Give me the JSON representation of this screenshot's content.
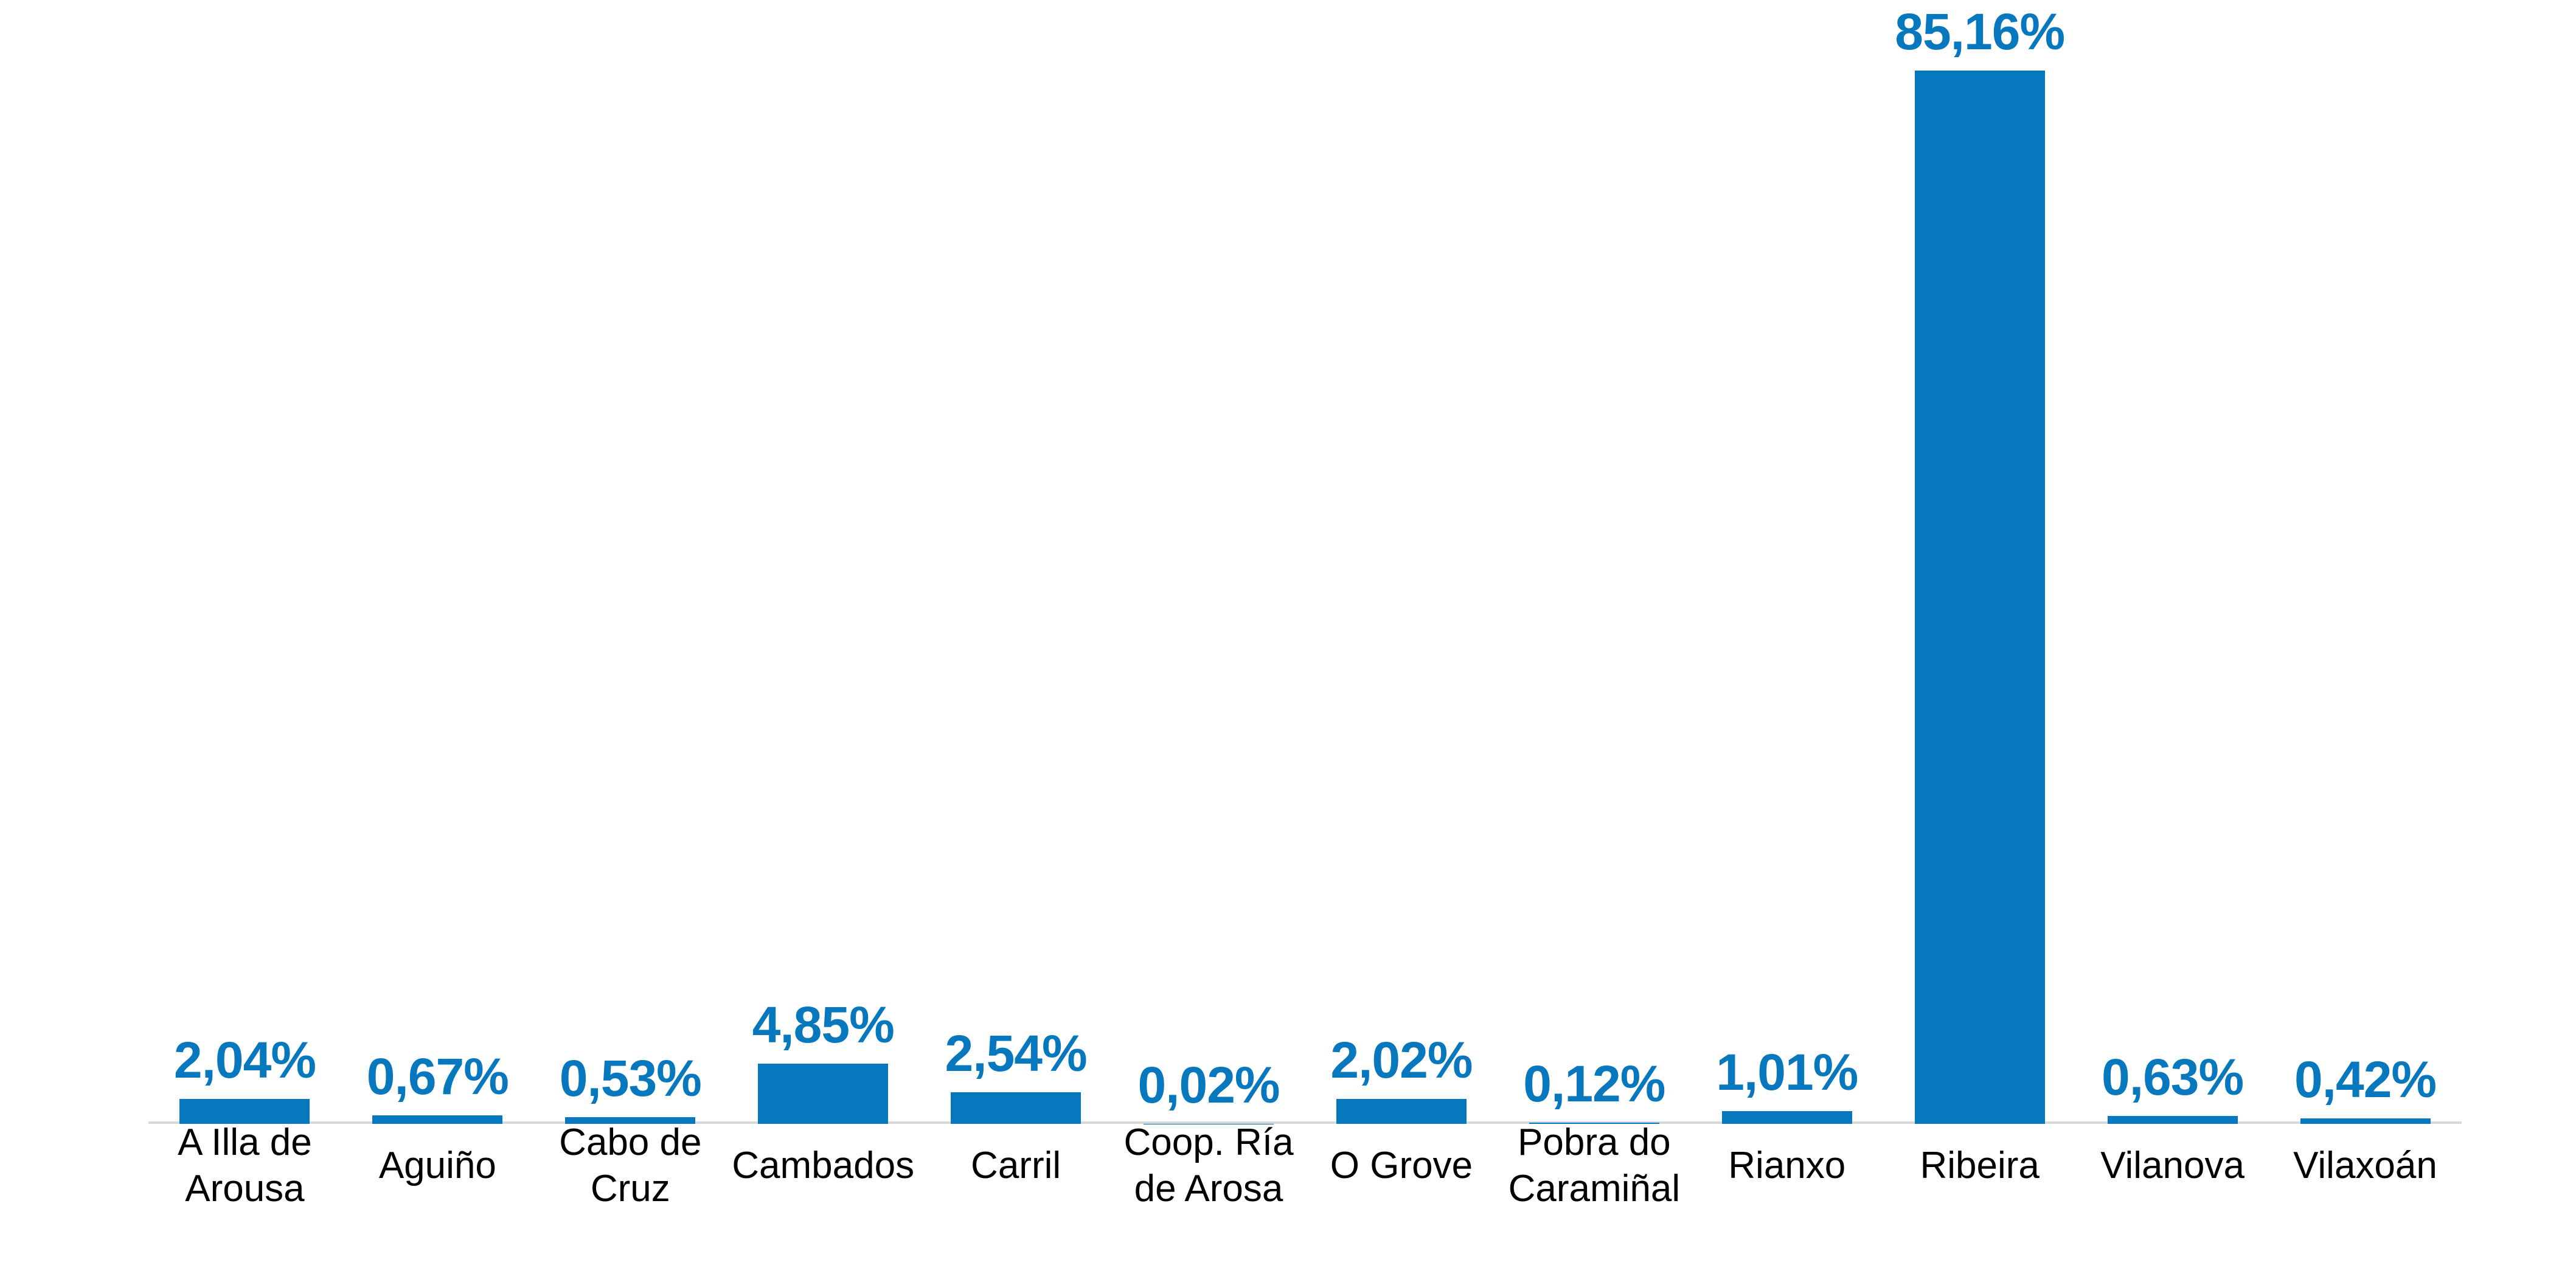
{
  "chart_data": {
    "type": "bar",
    "title": "",
    "xlabel": "",
    "ylabel": "",
    "ylim": [
      0,
      90
    ],
    "grid": false,
    "legend": false,
    "legend_position": "none",
    "categories": [
      "A Illa de Arousa",
      "Aguiño",
      "Cabo de Cruz",
      "Cambados",
      "Carril",
      "Coop. Ría de Arosa",
      "O Grove",
      "Pobra do Caramiñal",
      "Rianxo",
      "Ribeira",
      "Vilanova",
      "Vilaxoán"
    ],
    "category_lines": [
      [
        "A Illa de",
        "Arousa"
      ],
      [
        "Aguiño"
      ],
      [
        "Cabo de",
        "Cruz"
      ],
      [
        "Cambados"
      ],
      [
        "Carril"
      ],
      [
        "Coop. Ría",
        "de Arosa"
      ],
      [
        "O Grove"
      ],
      [
        "Pobra do",
        "Caramiñal"
      ],
      [
        "Rianxo"
      ],
      [
        "Ribeira"
      ],
      [
        "Vilanova"
      ],
      [
        "Vilaxoán"
      ]
    ],
    "values": [
      2.04,
      0.67,
      0.53,
      4.85,
      2.54,
      0.02,
      2.02,
      0.12,
      1.01,
      85.16,
      0.63,
      0.42
    ],
    "value_labels": [
      "2,04%",
      "0,67%",
      "0,53%",
      "4,85%",
      "2,54%",
      "0,02%",
      "2,02%",
      "0,12%",
      "1,01%",
      "85,16%",
      "0,63%",
      "0,42%"
    ],
    "colors": {
      "bar": "#0778be",
      "value_label": "#0778be",
      "category_label": "#000000",
      "axis_line": "#d9d9d9",
      "background": "#ffffff"
    }
  }
}
